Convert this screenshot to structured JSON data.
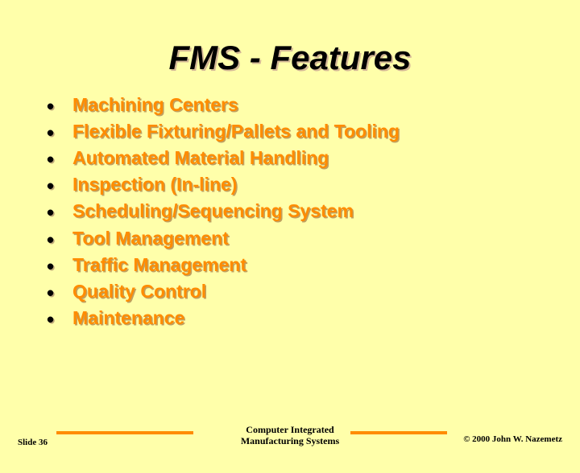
{
  "title": "FMS - Features",
  "bullets": [
    "Machining Centers",
    "Flexible Fixturing/Pallets and Tooling",
    "Automated Material Handling",
    "Inspection (In-line)",
    "Scheduling/Sequencing System",
    "Tool Management",
    "Traffic Management",
    "Quality Control",
    "Maintenance"
  ],
  "footer": {
    "slide_label": "Slide 36",
    "center_line1": "Computer Integrated",
    "center_line2": "Manufacturing Systems",
    "copyright": "© 2000  John W. Nazemetz"
  },
  "colors": {
    "background": "#ffffaa",
    "bullet_text": "#ff8c00",
    "title_text": "#000000",
    "shadow": "#d4b896",
    "rule": "#ff8c00"
  },
  "fontsizes": {
    "title": 42,
    "bullet": 23,
    "footer_small": 11,
    "footer_center": 12
  }
}
